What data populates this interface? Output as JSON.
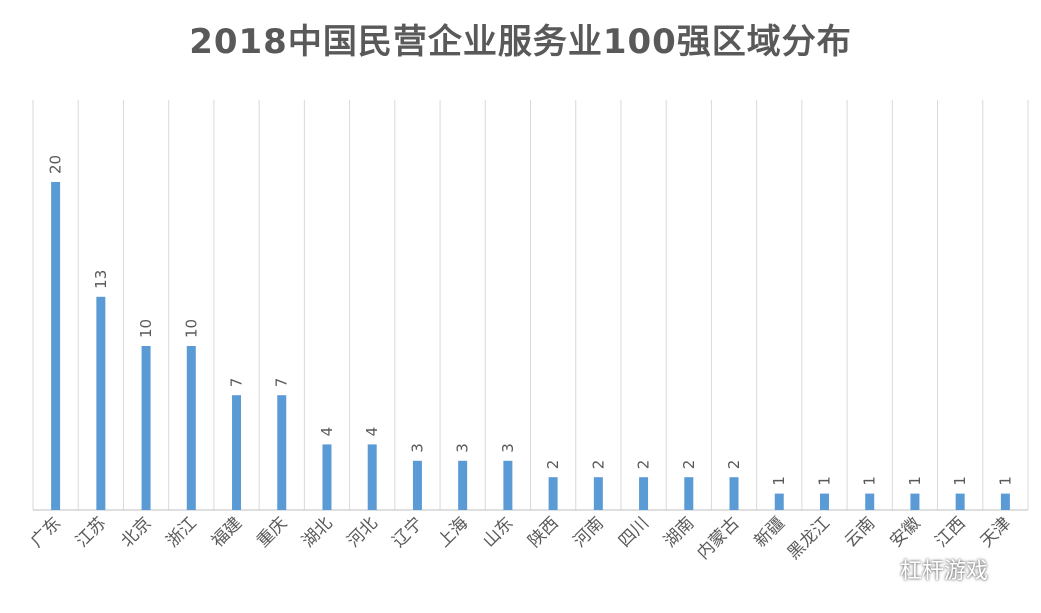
{
  "title": "2018中国民营企业服务业100强区域分布",
  "watermark": "杠杆游戏",
  "colors": {
    "bar": "#5b9bd5",
    "text": "#595959",
    "grid": "#d9d9d9"
  },
  "chart_data": {
    "type": "bar",
    "title": "2018中国民营企业服务业100强区域分布",
    "categories": [
      "广东",
      "江苏",
      "北京",
      "浙江",
      "福建",
      "重庆",
      "湖北",
      "河北",
      "辽宁",
      "上海",
      "山东",
      "陕西",
      "河南",
      "四川",
      "湖南",
      "内蒙古",
      "新疆",
      "黑龙江",
      "云南",
      "安徽",
      "江西",
      "天津"
    ],
    "values": [
      20,
      13,
      10,
      10,
      7,
      7,
      4,
      4,
      3,
      3,
      3,
      2,
      2,
      2,
      2,
      2,
      1,
      1,
      1,
      1,
      1,
      1
    ],
    "data_labels": [
      "20",
      "13",
      "10",
      "10",
      "7",
      "7",
      "4",
      "4",
      "3",
      "3",
      "3",
      "2",
      "2",
      "2",
      "2",
      "2",
      "1",
      "1",
      "1",
      "1",
      "1",
      "1"
    ],
    "xlabel": "",
    "ylabel": "",
    "ylim": [
      0,
      25
    ],
    "grid": "vertical category separators",
    "legend": "none"
  }
}
